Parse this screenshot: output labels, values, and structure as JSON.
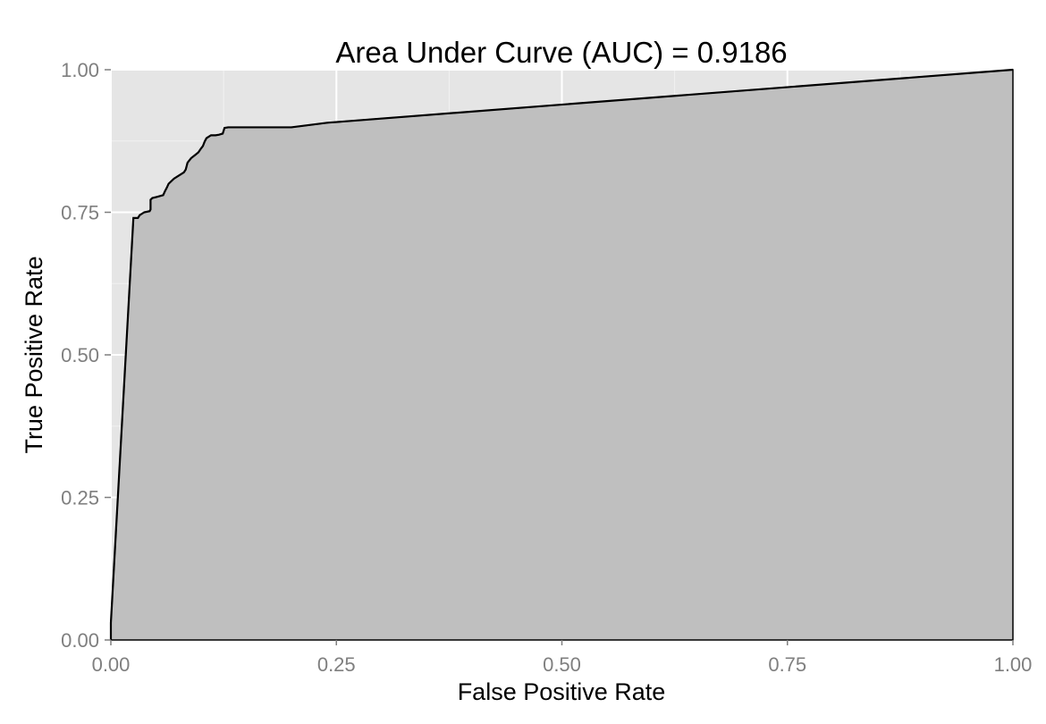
{
  "chart_data": {
    "type": "area",
    "title": "Area Under Curve (AUC) = 0.9186",
    "xlabel": "False Positive Rate",
    "ylabel": "True Positive Rate",
    "xlim": [
      0,
      1
    ],
    "ylim": [
      0,
      1
    ],
    "x_ticks": [
      0,
      0.25,
      0.5,
      0.75,
      1
    ],
    "y_ticks": [
      0,
      0.25,
      0.5,
      0.75,
      1
    ],
    "x_tick_labels": [
      "0.00",
      "0.25",
      "0.50",
      "0.75",
      "1.00"
    ],
    "y_tick_labels": [
      "0.00",
      "0.25",
      "0.50",
      "0.75",
      "1.00"
    ],
    "grid": true,
    "legend": "none",
    "colors": {
      "panel_background": "#e5e5e5",
      "grid_major": "#ffffff",
      "grid_minor": "#f2f2f2",
      "area_fill": "#bfbfbf",
      "curve_line": "#000000"
    },
    "series": [
      {
        "x": [
          0.0,
          0.0,
          0.025,
          0.03,
          0.032,
          0.037,
          0.043,
          0.044,
          0.044,
          0.046,
          0.051,
          0.058,
          0.06,
          0.062,
          0.064,
          0.07,
          0.081,
          0.083,
          0.085,
          0.089,
          0.093,
          0.097,
          0.1,
          0.102,
          0.104,
          0.106,
          0.111,
          0.114,
          0.116,
          0.12,
          0.124,
          0.126,
          0.13,
          0.2,
          0.24,
          1.0
        ],
        "y": [
          0.0,
          0.03,
          0.74,
          0.74,
          0.745,
          0.75,
          0.752,
          0.755,
          0.772,
          0.775,
          0.777,
          0.78,
          0.787,
          0.793,
          0.8,
          0.809,
          0.82,
          0.825,
          0.837,
          0.845,
          0.85,
          0.855,
          0.862,
          0.866,
          0.874,
          0.88,
          0.885,
          0.885,
          0.885,
          0.886,
          0.888,
          0.898,
          0.899,
          0.899,
          0.907,
          1.0
        ]
      }
    ]
  }
}
